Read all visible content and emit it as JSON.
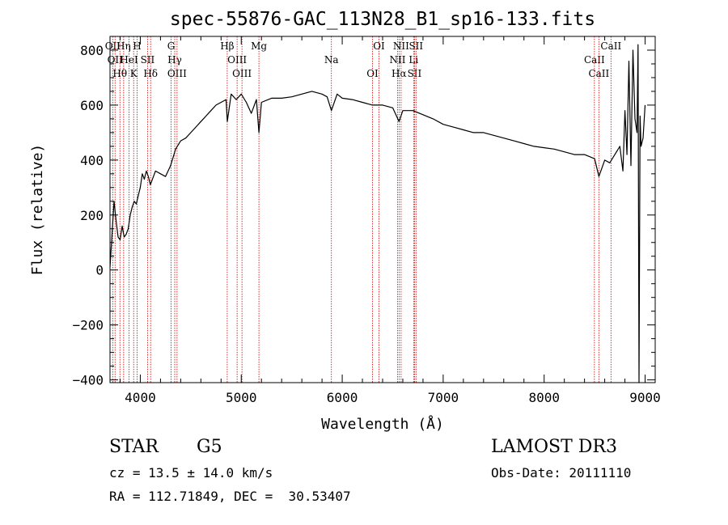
{
  "chart_data": {
    "type": "line",
    "title": "spec-55876-GAC_113N28_B1_sp16-133.fits",
    "xlabel": "Wavelength (Å)",
    "ylabel": "Flux (relative)",
    "xlim": [
      3700,
      9100
    ],
    "ylim": [
      -410,
      850
    ],
    "x_ticks": [
      4000,
      5000,
      6000,
      7000,
      8000,
      9000
    ],
    "y_ticks": [
      -400,
      -200,
      0,
      200,
      400,
      600,
      800
    ],
    "grid": false,
    "series": [
      {
        "x": [
          3700,
          3720,
          3740,
          3760,
          3780,
          3800,
          3820,
          3840,
          3860,
          3880,
          3900,
          3920,
          3940,
          3960,
          3980,
          4000,
          4020,
          4040,
          4060,
          4080,
          4100,
          4150,
          4200,
          4250,
          4300,
          4350,
          4400,
          4450,
          4500,
          4550,
          4600,
          4650,
          4700,
          4750,
          4800,
          4850,
          4862,
          4900,
          4950,
          5000,
          5050,
          5100,
          5150,
          5175,
          5200,
          5300,
          5400,
          5500,
          5600,
          5700,
          5800,
          5850,
          5893,
          5950,
          6000,
          6100,
          6200,
          6300,
          6400,
          6500,
          6563,
          6600,
          6700,
          6800,
          6900,
          7000,
          7100,
          7200,
          7300,
          7400,
          7500,
          7600,
          7700,
          7800,
          7900,
          8000,
          8100,
          8200,
          8300,
          8400,
          8500,
          8542,
          8600,
          8650,
          8700,
          8750,
          8780,
          8800,
          8820,
          8840,
          8860,
          8880,
          8900,
          8920,
          8930,
          8940,
          8950,
          8960,
          8980,
          9000
        ],
        "y": [
          10,
          130,
          250,
          180,
          120,
          110,
          160,
          120,
          130,
          150,
          200,
          230,
          250,
          240,
          270,
          300,
          350,
          330,
          360,
          340,
          310,
          360,
          350,
          340,
          380,
          440,
          470,
          480,
          500,
          520,
          540,
          560,
          580,
          600,
          610,
          620,
          540,
          640,
          620,
          640,
          610,
          570,
          620,
          500,
          610,
          625,
          625,
          630,
          640,
          650,
          640,
          630,
          580,
          640,
          625,
          620,
          610,
          600,
          600,
          590,
          540,
          580,
          580,
          565,
          550,
          530,
          520,
          510,
          500,
          500,
          490,
          480,
          470,
          460,
          450,
          445,
          440,
          430,
          420,
          420,
          405,
          340,
          400,
          390,
          420,
          450,
          360,
          580,
          420,
          760,
          380,
          800,
          550,
          500,
          820,
          -410,
          560,
          450,
          480,
          600
        ]
      }
    ],
    "lines": [
      {
        "x": 3727,
        "label": "OII"
      },
      {
        "x": 3750,
        "label": "OII"
      },
      {
        "x": 3798,
        "label": "Hθ"
      },
      {
        "x": 3835,
        "label": "Hη"
      },
      {
        "x": 3889,
        "label": "HeI"
      },
      {
        "x": 3934,
        "label": "K"
      },
      {
        "x": 3968,
        "label": "H"
      },
      {
        "x": 4072,
        "label": "SII"
      },
      {
        "x": 4102,
        "label": "Hδ"
      },
      {
        "x": 4305,
        "label": "G"
      },
      {
        "x": 4341,
        "label": "Hγ"
      },
      {
        "x": 4364,
        "label": "OIII"
      },
      {
        "x": 4861,
        "label": "Hβ"
      },
      {
        "x": 4959,
        "label": "OIII"
      },
      {
        "x": 5007,
        "label": "OIII"
      },
      {
        "x": 5175,
        "label": "Mg"
      },
      {
        "x": 5893,
        "label": "Na"
      },
      {
        "x": 6300,
        "label": "OI"
      },
      {
        "x": 6364,
        "label": "OI"
      },
      {
        "x": 6548,
        "label": "NII"
      },
      {
        "x": 6563,
        "label": "Hα"
      },
      {
        "x": 6583,
        "label": "NII"
      },
      {
        "x": 6707,
        "label": "Li"
      },
      {
        "x": 6716,
        "label": "SII"
      },
      {
        "x": 6731,
        "label": "SII"
      },
      {
        "x": 8498,
        "label": "CaII"
      },
      {
        "x": 8542,
        "label": "CaII"
      },
      {
        "x": 8662,
        "label": "CaII"
      }
    ]
  },
  "info": {
    "class": "STAR",
    "subclass": "G5",
    "survey": "LAMOST DR3",
    "cz": "cz = 13.5 ± 14.0 km/s",
    "obs_date": "Obs-Date: 20111110",
    "radec": "RA = 112.71849, DEC =  30.53407"
  },
  "colors": {
    "spectrum": "#000000",
    "lines": "#cc0000",
    "axes": "#000000"
  }
}
